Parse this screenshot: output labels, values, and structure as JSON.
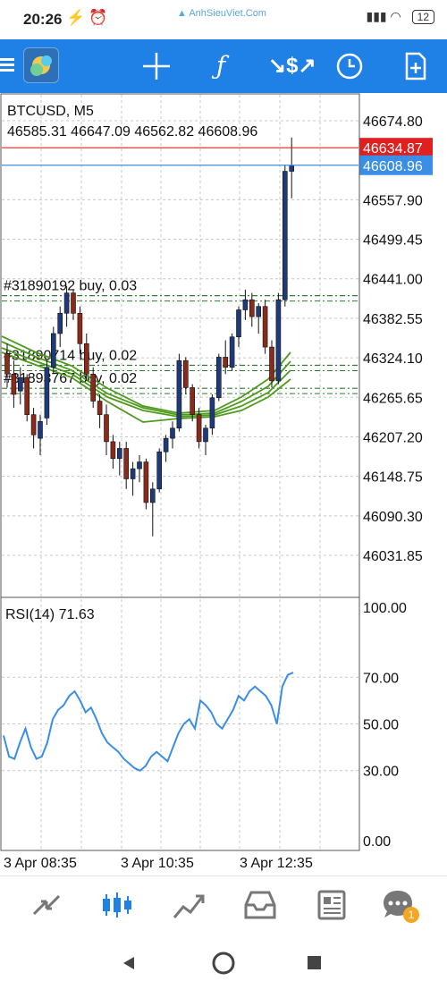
{
  "status_bar": {
    "time": "20:26",
    "watermark": "AnhSieuViet.Com",
    "battery": "12"
  },
  "chart": {
    "symbol_title": "BTCUSD, M5",
    "ohlc": "46585.31 46647.09 46562.82 46608.96",
    "price_ticks": [
      "46674.80",
      "46557.90",
      "46499.45",
      "46441.00",
      "46382.55",
      "46324.10",
      "46265.65",
      "46207.20",
      "46148.75",
      "46090.30",
      "46031.85"
    ],
    "ask_label": "46634.87",
    "bid_label": "46608.96",
    "orders": [
      {
        "label": "#31890192 buy, 0.03",
        "price": 46416
      },
      {
        "label": "#31890714 buy, 0.02",
        "price": 46313
      },
      {
        "label": "#31893767 buy, 0.02",
        "price": 46279
      }
    ],
    "rsi_title": "RSI(14) 71.63",
    "rsi_ticks": [
      "100.00",
      "70.00",
      "50.00",
      "30.00",
      "0.00"
    ],
    "time_labels": [
      "3 Apr 08:35",
      "3 Apr 10:35",
      "3 Apr 12:35"
    ],
    "colors": {
      "ask_line": "#e02020",
      "bid_line": "#3a8ee6",
      "rsi_line": "#3a8ee6",
      "ma_line": "#4e9a1e",
      "order_line": "#2e7d32"
    }
  },
  "bottom_nav": {
    "items": [
      "quotes-icon",
      "chart-icon",
      "trade-icon",
      "history-icon",
      "news-icon",
      "messages-icon"
    ],
    "messages_badge": "1"
  }
}
